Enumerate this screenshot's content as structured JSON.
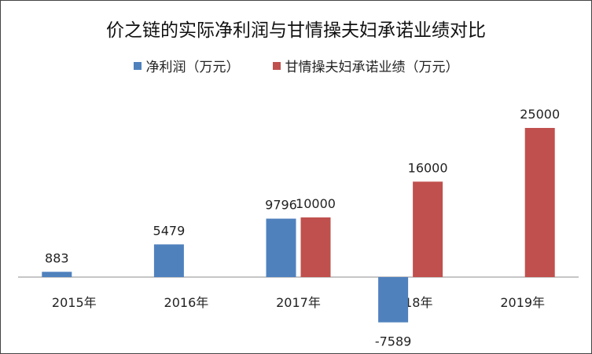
{
  "chart_data": {
    "type": "bar",
    "title": "价之链的实际净利润与甘情操夫妇承诺业绩对比",
    "categories": [
      "2015年",
      "2016年",
      "2017年",
      "2018年",
      "2019年"
    ],
    "series": [
      {
        "name": "净利润（万元）",
        "color": "#4f81bd",
        "values": [
          883,
          5479,
          9796,
          -7589,
          null
        ],
        "labels": [
          "883",
          "5479",
          "9796",
          "-7589",
          ""
        ]
      },
      {
        "name": "甘情操夫妇承诺业绩（万元）",
        "color": "#c0504d",
        "values": [
          null,
          null,
          10000,
          16000,
          25000
        ],
        "labels": [
          "",
          "",
          "10000",
          "16000",
          "25000"
        ]
      }
    ],
    "ylim": [
      -8000,
      26000
    ],
    "grid": false,
    "legend_position": "top"
  }
}
